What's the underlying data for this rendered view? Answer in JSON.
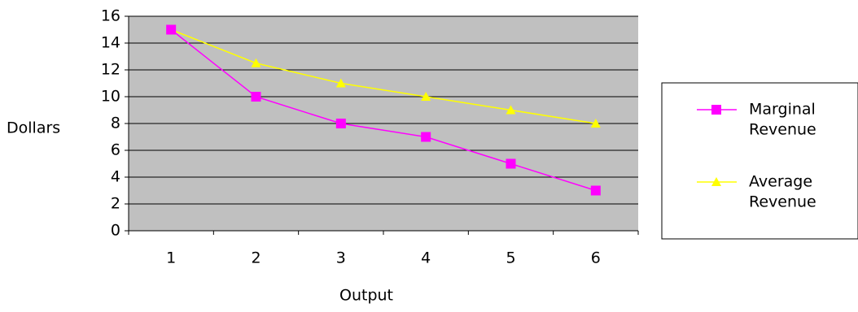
{
  "chart_data": {
    "type": "line",
    "title": "",
    "xlabel": "Output",
    "ylabel": "Dollars",
    "categories": [
      "1",
      "2",
      "3",
      "4",
      "5",
      "6"
    ],
    "ylim": [
      0,
      16
    ],
    "yticks": [
      "0",
      "2",
      "4",
      "6",
      "8",
      "10",
      "12",
      "14",
      "16"
    ],
    "grid": true,
    "plot_background": "#c0c0c0",
    "legend_placement": "right",
    "series": [
      {
        "name": "Marginal Revenue",
        "name_lines": [
          "Marginal",
          "Revenue"
        ],
        "values": [
          15,
          10,
          8,
          7,
          5,
          3
        ],
        "color": "#ff00ff",
        "marker": "square"
      },
      {
        "name": "Average Revenue",
        "name_lines": [
          "Average",
          "Revenue"
        ],
        "values": [
          15,
          12.5,
          11,
          10,
          9,
          8
        ],
        "color": "#ffff00",
        "marker": "triangle"
      }
    ]
  }
}
